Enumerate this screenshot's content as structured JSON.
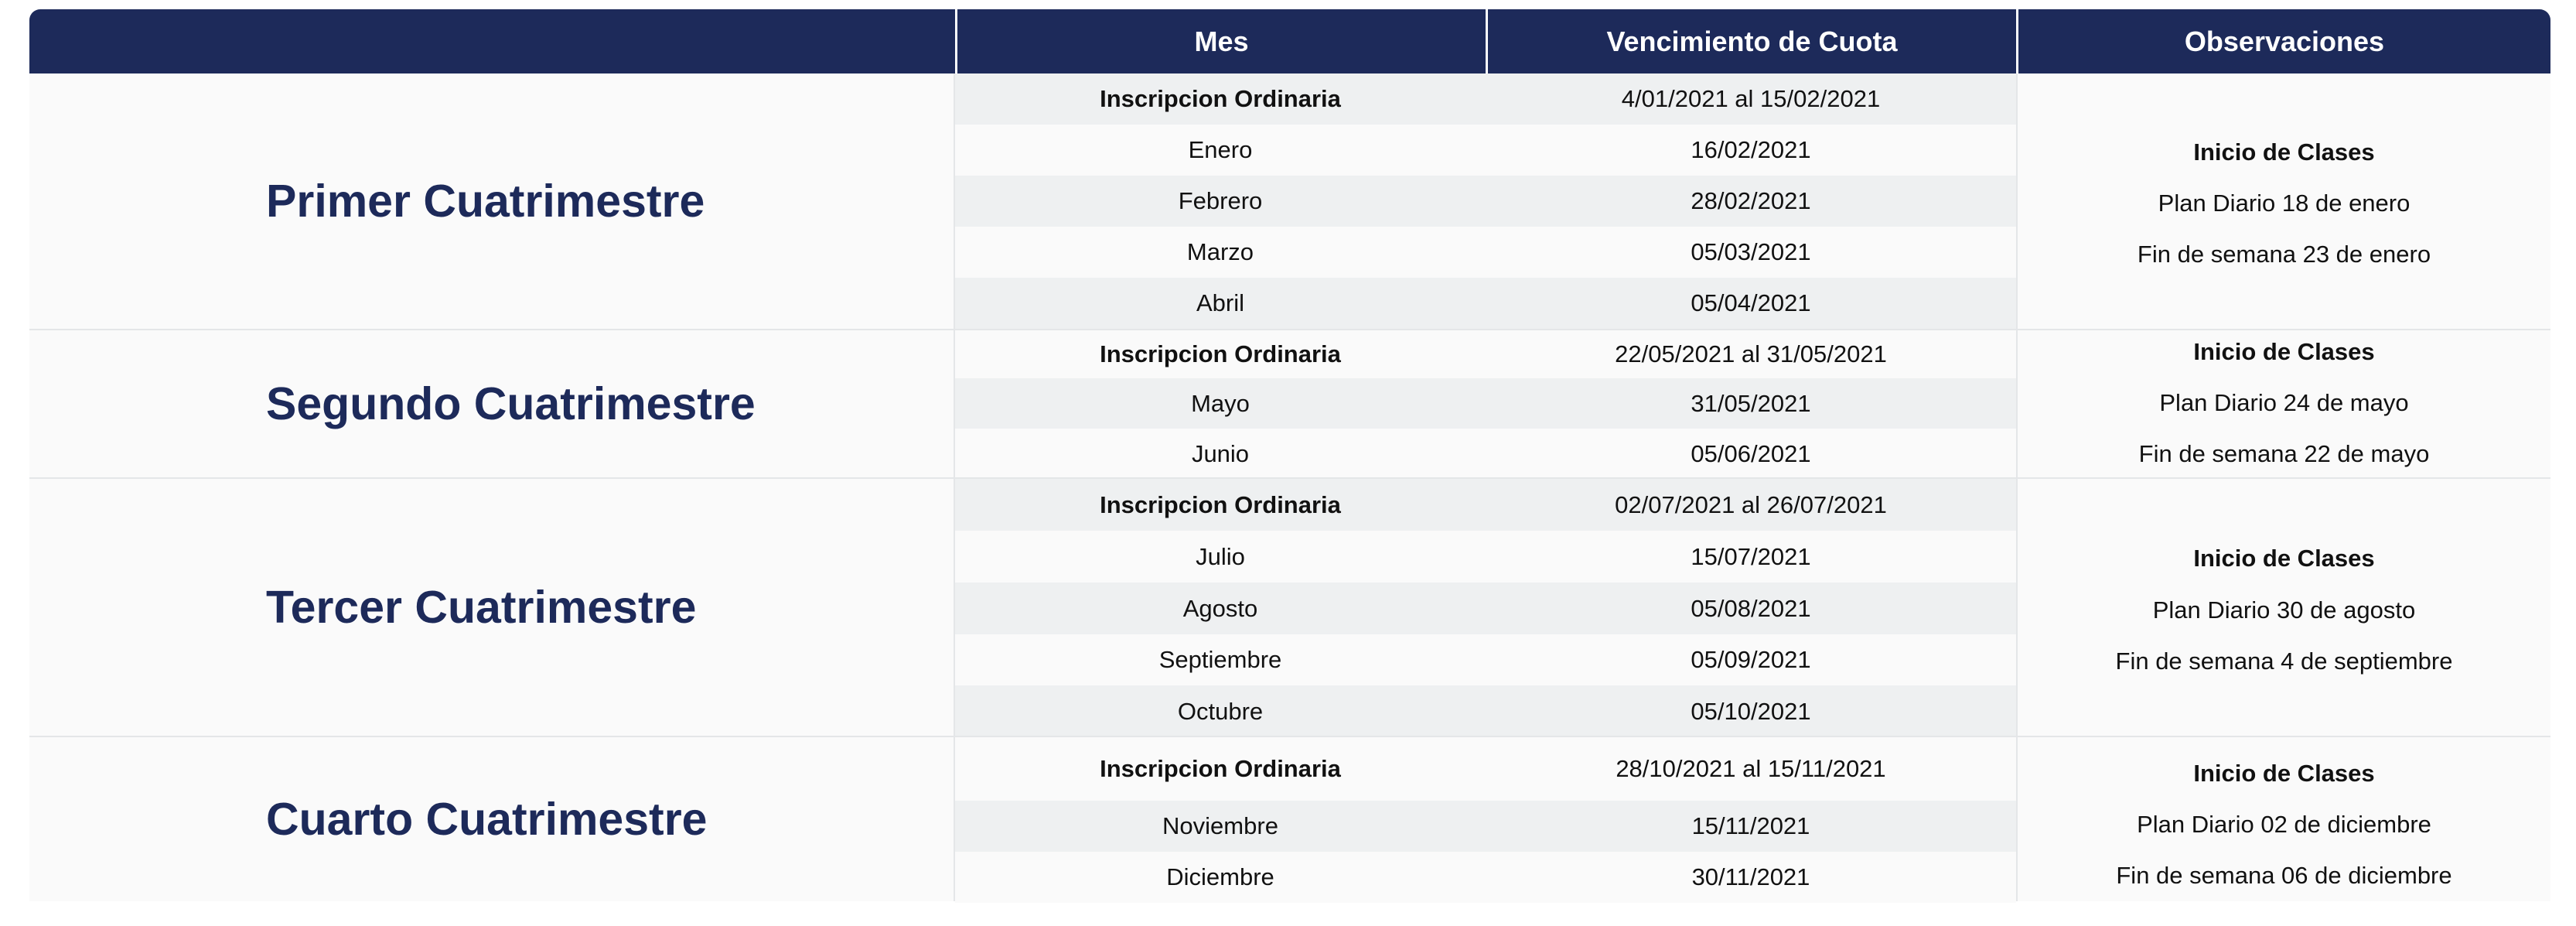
{
  "header": {
    "col0": "",
    "col1": "Mes",
    "col2": "Vencimiento de Cuota",
    "col3": "Observaciones"
  },
  "sections": [
    {
      "title": "Primer Cuatrimestre",
      "rows": [
        {
          "mes": "Inscripcion Ordinaria",
          "vencimiento": "4/01/2021 al 15/02/2021"
        },
        {
          "mes": "Enero",
          "vencimiento": "16/02/2021"
        },
        {
          "mes": "Febrero",
          "vencimiento": "28/02/2021"
        },
        {
          "mes": "Marzo",
          "vencimiento": "05/03/2021"
        },
        {
          "mes": "Abril",
          "vencimiento": "05/04/2021"
        }
      ],
      "obs": [
        "Inicio de Clases",
        "Plan Diario 18 de enero",
        "Fin de semana 23 de enero"
      ]
    },
    {
      "title": "Segundo Cuatrimestre",
      "rows": [
        {
          "mes": "Inscripcion Ordinaria",
          "vencimiento": "22/05/2021 al 31/05/2021"
        },
        {
          "mes": "Mayo",
          "vencimiento": "31/05/2021"
        },
        {
          "mes": "Junio",
          "vencimiento": "05/06/2021"
        }
      ],
      "obs": [
        "Inicio de Clases",
        "Plan Diario 24 de mayo",
        "Fin de semana 22 de mayo"
      ]
    },
    {
      "title": "Tercer Cuatrimestre",
      "rows": [
        {
          "mes": "Inscripcion Ordinaria",
          "vencimiento": "02/07/2021 al 26/07/2021"
        },
        {
          "mes": "Julio",
          "vencimiento": "15/07/2021"
        },
        {
          "mes": "Agosto",
          "vencimiento": "05/08/2021"
        },
        {
          "mes": "Septiembre",
          "vencimiento": "05/09/2021"
        },
        {
          "mes": "Octubre",
          "vencimiento": "05/10/2021"
        }
      ],
      "obs": [
        "Inicio de Clases",
        "Plan Diario 30 de agosto",
        "Fin de semana 4 de septiembre"
      ]
    },
    {
      "title": "Cuarto Cuatrimestre",
      "rows": [
        {
          "mes": "Inscripcion Ordinaria",
          "vencimiento": "28/10/2021 al 15/11/2021"
        },
        {
          "mes": "Noviembre",
          "vencimiento": "15/11/2021"
        },
        {
          "mes": "Diciembre",
          "vencimiento": "30/11/2021"
        }
      ],
      "obs": [
        "Inicio de Clases",
        "Plan Diario 02 de diciembre",
        "Fin de semana 06 de diciembre"
      ]
    }
  ]
}
